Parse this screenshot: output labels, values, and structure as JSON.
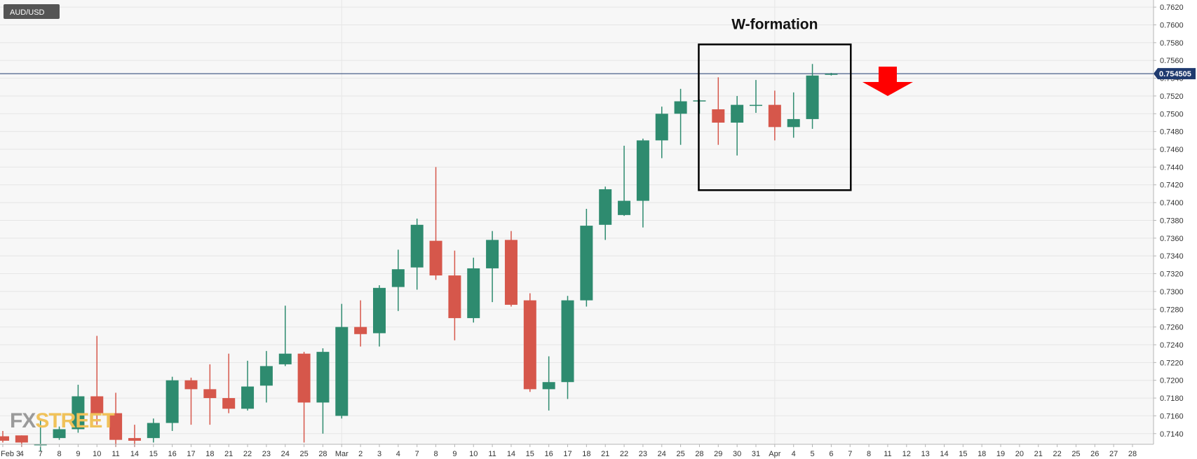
{
  "symbol": "AUD/USD",
  "logo": "FXSTREET",
  "colors": {
    "up": "#2e8b6f",
    "down": "#d6574b",
    "price_line": "#1f3a6e",
    "grid": "#e6e6e6",
    "plot_bg": "#f7f7f7",
    "arrow": "#ff0000",
    "symbol_bg": "#555555"
  },
  "chart_data": {
    "type": "candlestick",
    "ylim": [
      0.7128,
      0.7628
    ],
    "y_ticks": [
      "0.7140",
      "0.7160",
      "0.7180",
      "0.7200",
      "0.7220",
      "0.7240",
      "0.7260",
      "0.7280",
      "0.7300",
      "0.7320",
      "0.7340",
      "0.7360",
      "0.7380",
      "0.7400",
      "0.7420",
      "0.7440",
      "0.7460",
      "0.7480",
      "0.7500",
      "0.7520",
      "0.7540",
      "0.7560",
      "0.7580",
      "0.7600",
      "0.7620"
    ],
    "x_labels": [
      "Feb 3",
      "4",
      "7",
      "8",
      "9",
      "10",
      "11",
      "14",
      "15",
      "16",
      "17",
      "18",
      "21",
      "22",
      "23",
      "24",
      "25",
      "28",
      "Mar",
      "2",
      "3",
      "4",
      "7",
      "8",
      "9",
      "10",
      "11",
      "14",
      "15",
      "16",
      "17",
      "18",
      "21",
      "22",
      "23",
      "24",
      "25",
      "28",
      "29",
      "30",
      "31",
      "Apr",
      "4",
      "5",
      "6",
      "7",
      "8",
      "11",
      "12",
      "13",
      "14",
      "15",
      "18",
      "19",
      "20",
      "21",
      "22",
      "25",
      "26",
      "27",
      "28"
    ],
    "ohlc": [
      [
        0.7137,
        0.7143,
        0.713,
        0.7132
      ],
      [
        0.7138,
        0.7138,
        0.7125,
        0.713
      ],
      [
        0.7128,
        0.7155,
        0.712,
        0.7128
      ],
      [
        0.7135,
        0.7148,
        0.7133,
        0.7145
      ],
      [
        0.7145,
        0.7195,
        0.7141,
        0.7182
      ],
      [
        0.7182,
        0.725,
        0.715,
        0.7163
      ],
      [
        0.7163,
        0.7186,
        0.7125,
        0.7133
      ],
      [
        0.7135,
        0.715,
        0.7125,
        0.7132
      ],
      [
        0.7135,
        0.7157,
        0.713,
        0.7152
      ],
      [
        0.7152,
        0.7204,
        0.7143,
        0.72
      ],
      [
        0.72,
        0.7203,
        0.715,
        0.719
      ],
      [
        0.719,
        0.7218,
        0.715,
        0.718
      ],
      [
        0.718,
        0.723,
        0.7163,
        0.7168
      ],
      [
        0.7168,
        0.7222,
        0.7166,
        0.7193
      ],
      [
        0.7194,
        0.7233,
        0.7175,
        0.7216
      ],
      [
        0.7218,
        0.7284,
        0.7216,
        0.723
      ],
      [
        0.723,
        0.7232,
        0.713,
        0.7175
      ],
      [
        0.7175,
        0.7236,
        0.714,
        0.7232
      ],
      [
        0.716,
        0.7286,
        0.7157,
        0.726
      ],
      [
        0.726,
        0.729,
        0.7238,
        0.7252
      ],
      [
        0.7253,
        0.7307,
        0.7238,
        0.7304
      ],
      [
        0.7305,
        0.7347,
        0.7278,
        0.7325
      ],
      [
        0.7327,
        0.7382,
        0.7302,
        0.7375
      ],
      [
        0.7357,
        0.744,
        0.7313,
        0.7318
      ],
      [
        0.7318,
        0.7346,
        0.7245,
        0.727
      ],
      [
        0.727,
        0.7338,
        0.7265,
        0.7326
      ],
      [
        0.7326,
        0.7368,
        0.7288,
        0.7358
      ],
      [
        0.7358,
        0.7368,
        0.7283,
        0.7285
      ],
      [
        0.729,
        0.7298,
        0.7187,
        0.719
      ],
      [
        0.719,
        0.7227,
        0.7166,
        0.7198
      ],
      [
        0.7198,
        0.7295,
        0.7179,
        0.729
      ],
      [
        0.729,
        0.7393,
        0.7283,
        0.7374
      ],
      [
        0.7375,
        0.7418,
        0.7358,
        0.7415
      ],
      [
        0.7386,
        0.7464,
        0.7385,
        0.7402
      ],
      [
        0.7402,
        0.7472,
        0.7372,
        0.747
      ],
      [
        0.747,
        0.7508,
        0.745,
        0.75
      ],
      [
        0.75,
        0.7528,
        0.7465,
        0.7514
      ],
      [
        0.7514,
        0.7516,
        0.75,
        0.7515
      ],
      [
        0.7505,
        0.7541,
        0.7465,
        0.749
      ],
      [
        0.749,
        0.752,
        0.7453,
        0.751
      ],
      [
        0.7509,
        0.7538,
        0.7501,
        0.751
      ],
      [
        0.751,
        0.7526,
        0.747,
        0.7485
      ],
      [
        0.7485,
        0.7524,
        0.7473,
        0.7494
      ],
      [
        0.7494,
        0.7556,
        0.7483,
        0.7543
      ],
      [
        0.7545,
        0.7546,
        0.7543,
        0.7545
      ]
    ],
    "last_price": 0.754505,
    "last_price_label": "0.754505",
    "annotation": {
      "label": "W-formation",
      "box": {
        "from_index": 37,
        "to_index": 45,
        "price_low": 0.7414,
        "price_high": 0.7578
      }
    },
    "arrow": {
      "direction": "down",
      "index": 47,
      "top_price": 0.7553,
      "tip_price": 0.752
    },
    "grid": true
  }
}
